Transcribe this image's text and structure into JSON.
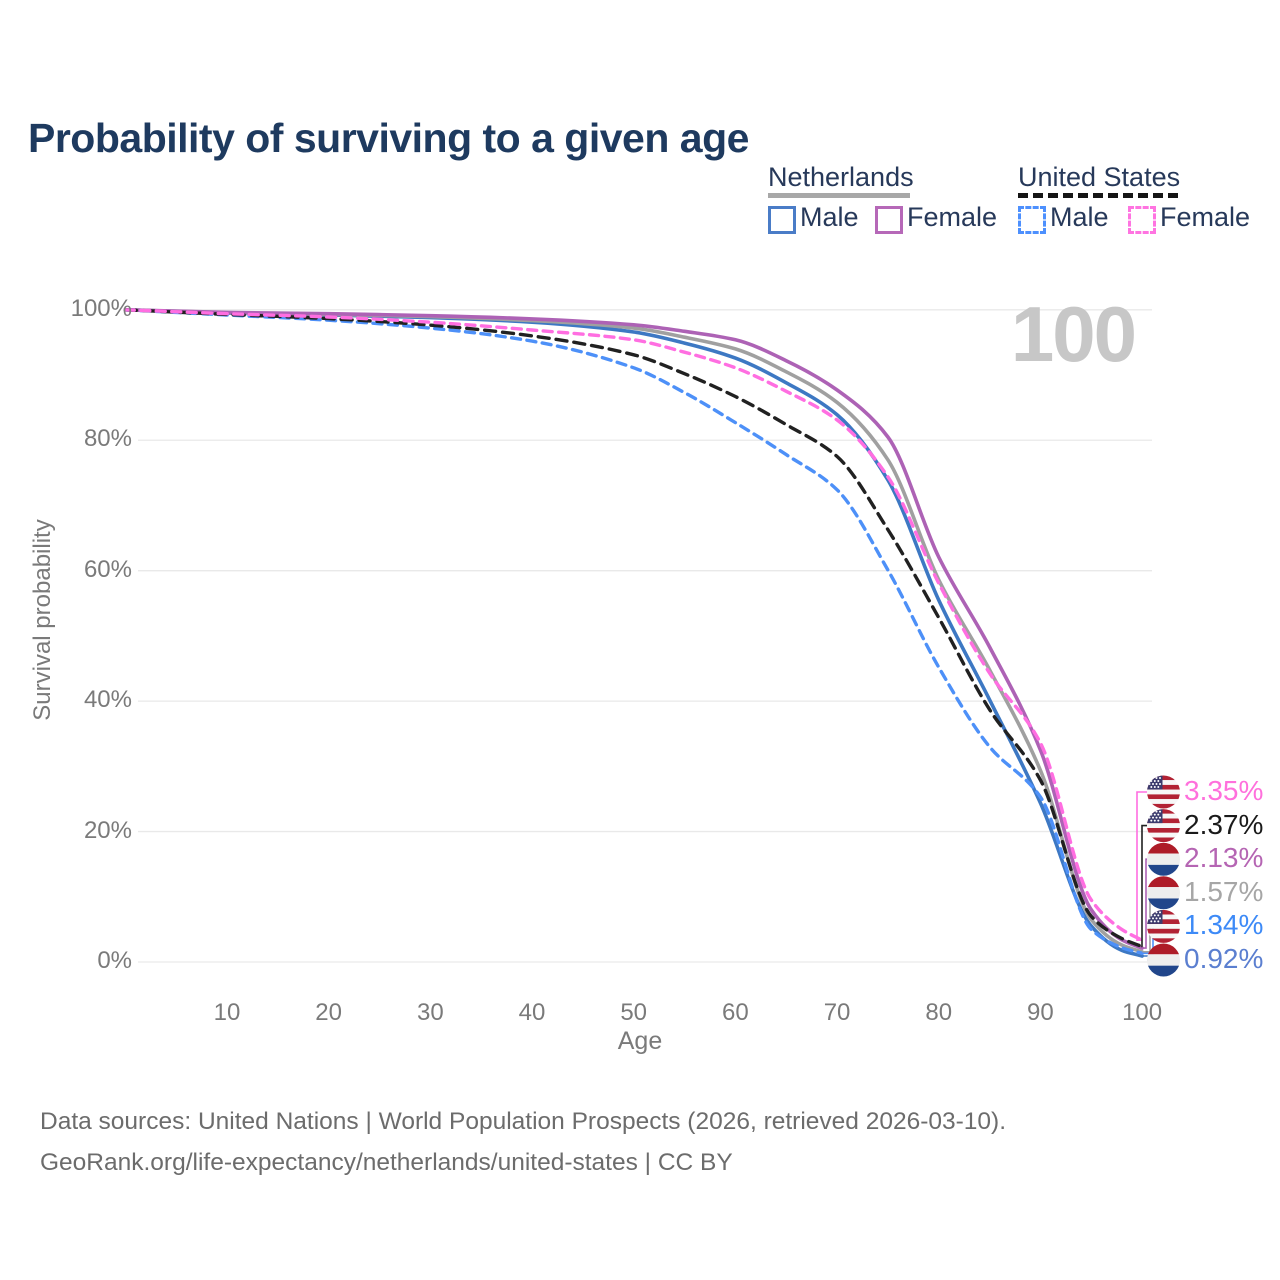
{
  "title": "Probability of surviving to a given age",
  "watermark_age": "100",
  "legend": {
    "groups": [
      {
        "label": "Netherlands",
        "line_style": "solid",
        "underline_color": "#a8a8a8",
        "items": [
          {
            "label": "Male",
            "color": "#4a7cc7",
            "dashed": false
          },
          {
            "label": "Female",
            "color": "#b668b8",
            "dashed": false
          }
        ]
      },
      {
        "label": "United States",
        "line_style": "dashed",
        "underline_color": "#151515",
        "items": [
          {
            "label": "Male",
            "color": "#4d90fe",
            "dashed": true
          },
          {
            "label": "Female",
            "color": "#ff74e1",
            "dashed": true
          }
        ]
      }
    ]
  },
  "chart_data": {
    "type": "line",
    "title": "Probability of surviving to a given age",
    "xlabel": "Age",
    "ylabel": "Survival probability",
    "xlim": [
      0,
      100
    ],
    "ylim": [
      0,
      100
    ],
    "grid": "horizontal",
    "legend_position": "top-right",
    "x_ticks": [
      10,
      20,
      30,
      40,
      50,
      60,
      70,
      80,
      90,
      100
    ],
    "y_ticks": [
      0,
      20,
      40,
      60,
      80,
      100
    ],
    "y_tick_labels": [
      "0%",
      "20%",
      "40%",
      "60%",
      "80%",
      "100%"
    ],
    "x": [
      0,
      10,
      20,
      30,
      40,
      50,
      55,
      60,
      65,
      70,
      75,
      80,
      85,
      90,
      95,
      98,
      100
    ],
    "series": [
      {
        "id": "nl-male",
        "name": "Netherlands Male",
        "country": "Netherlands",
        "sex": "Male",
        "color": "#3d78c3",
        "dashed": false,
        "values": [
          100,
          99.5,
          99.2,
          98.8,
          98.1,
          96.6,
          94.9,
          92.6,
          88.8,
          83.9,
          73.9,
          55.5,
          40.2,
          24.4,
          5.5,
          1.8,
          0.92
        ]
      },
      {
        "id": "nl-all",
        "name": "Netherlands Both sexes",
        "country": "Netherlands",
        "sex": "Both",
        "color": "#a0a0a0",
        "dashed": false,
        "values": [
          100,
          99.55,
          99.3,
          98.95,
          98.35,
          97.2,
          95.8,
          94.0,
          90.5,
          85.8,
          77.0,
          58.6,
          44.8,
          29.4,
          6.5,
          2.6,
          1.57
        ]
      },
      {
        "id": "nl-female",
        "name": "Netherlands Female",
        "country": "Netherlands",
        "sex": "Female",
        "color": "#ad62b5",
        "dashed": false,
        "values": [
          100,
          99.6,
          99.4,
          99.1,
          98.6,
          97.7,
          96.7,
          95.4,
          92.2,
          87.7,
          80.5,
          62.1,
          48.3,
          32.5,
          8.0,
          3.4,
          2.13
        ]
      },
      {
        "id": "us-male",
        "name": "United States Male",
        "country": "United States",
        "sex": "Male",
        "color": "#4d90f8",
        "dashed": true,
        "values": [
          100,
          99.2,
          98.4,
          97.2,
          95.2,
          91.1,
          87.3,
          82.7,
          77.8,
          72.4,
          60.1,
          45.2,
          33.0,
          25.3,
          5.0,
          2.2,
          1.34
        ]
      },
      {
        "id": "us-all",
        "name": "United States Both sexes",
        "country": "United States",
        "sex": "Both",
        "color": "#212121",
        "dashed": true,
        "values": [
          100,
          99.3,
          98.65,
          97.65,
          96.0,
          93.1,
          90.2,
          86.7,
          82.4,
          77.5,
          66.3,
          52.8,
          38.7,
          27.9,
          7.0,
          3.6,
          2.37
        ]
      },
      {
        "id": "us-female",
        "name": "United States Female",
        "country": "United States",
        "sex": "Female",
        "color": "#ff6ee1",
        "dashed": true,
        "values": [
          100,
          99.4,
          98.9,
          98.1,
          96.9,
          95.4,
          93.5,
          91.1,
          87.5,
          83.1,
          74.4,
          58.1,
          44.3,
          33.6,
          9.5,
          5.0,
          3.35
        ]
      }
    ]
  },
  "end_labels": [
    {
      "flag": "us-flag-icon",
      "text": "3.35%",
      "color": "#ff70dc",
      "series": "us-female"
    },
    {
      "flag": "us-flag-icon",
      "text": "2.37%",
      "color": "#1a1a1a",
      "series": "us-all"
    },
    {
      "flag": "nl-flag-icon",
      "text": "2.13%",
      "color": "#b565b3",
      "series": "nl-female"
    },
    {
      "flag": "nl-flag-icon",
      "text": "1.57%",
      "color": "#a6a6a6",
      "series": "nl-all"
    },
    {
      "flag": "us-flag-icon",
      "text": "1.34%",
      "color": "#3d8af7",
      "series": "us-male"
    },
    {
      "flag": "nl-flag-icon",
      "text": "0.92%",
      "color": "#5b7fd0",
      "series": "nl-male"
    }
  ],
  "footer": {
    "line1": "Data sources: United Nations | World Population Prospects (2026, retrieved 2026-03-10).",
    "line2": "GeoRank.org/life-expectancy/netherlands/united-states | CC BY"
  }
}
